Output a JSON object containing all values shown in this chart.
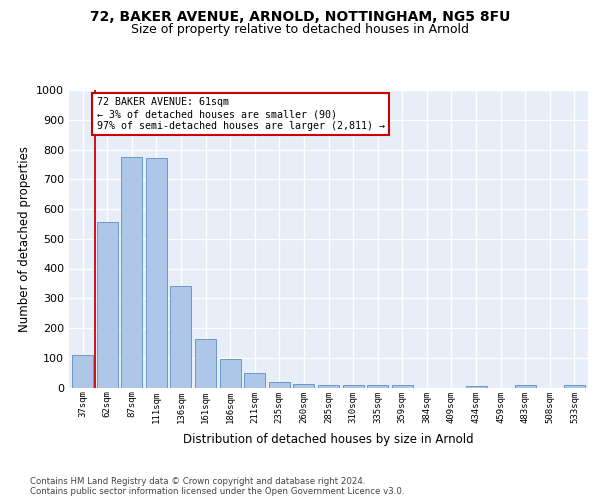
{
  "title1": "72, BAKER AVENUE, ARNOLD, NOTTINGHAM, NG5 8FU",
  "title2": "Size of property relative to detached houses in Arnold",
  "xlabel": "Distribution of detached houses by size in Arnold",
  "ylabel": "Number of detached properties",
  "categories": [
    "37sqm",
    "62sqm",
    "87sqm",
    "111sqm",
    "136sqm",
    "161sqm",
    "186sqm",
    "211sqm",
    "235sqm",
    "260sqm",
    "285sqm",
    "310sqm",
    "335sqm",
    "359sqm",
    "384sqm",
    "409sqm",
    "434sqm",
    "459sqm",
    "483sqm",
    "508sqm",
    "533sqm"
  ],
  "values": [
    110,
    555,
    775,
    770,
    340,
    163,
    95,
    50,
    18,
    12,
    10,
    10,
    10,
    10,
    0,
    0,
    5,
    0,
    10,
    0,
    10
  ],
  "bar_color": "#aec6e8",
  "bar_edge_color": "#5a8fc4",
  "property_line_x": 0.5,
  "annotation_box_text": "72 BAKER AVENUE: 61sqm\n← 3% of detached houses are smaller (90)\n97% of semi-detached houses are larger (2,811) →",
  "annotation_box_facecolor": "#ffffff",
  "annotation_box_edgecolor": "#cc0000",
  "footer_line1": "Contains HM Land Registry data © Crown copyright and database right 2024.",
  "footer_line2": "Contains public sector information licensed under the Open Government Licence v3.0.",
  "ylim": [
    0,
    1000
  ],
  "yticks": [
    0,
    100,
    200,
    300,
    400,
    500,
    600,
    700,
    800,
    900,
    1000
  ],
  "background_color": "#e8eef8",
  "grid_color": "#ffffff",
  "title1_fontsize": 10,
  "title2_fontsize": 9,
  "xlabel_fontsize": 8.5,
  "ylabel_fontsize": 8.5,
  "tick_fontsize": 8,
  "xtick_fontsize": 6.5
}
